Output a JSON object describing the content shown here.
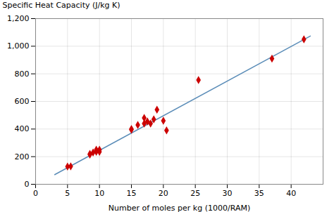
{
  "chart_data": {
    "type": "scatter",
    "xlabel": "Number of moles per kg (1000/RAM)",
    "ylabel": "Specific Heat Capacity (J/kg K)",
    "series": [
      {
        "type": "line",
        "x": [
          3,
          43
        ],
        "values": [
          69.8,
          1073.8
        ],
        "color": "#5b8db8"
      },
      {
        "type": "scatter",
        "x": [
          5,
          5.5,
          8.5,
          8.5,
          9,
          9.5,
          9.5,
          10,
          10,
          15,
          15,
          16,
          17,
          17,
          17.5,
          18,
          18.5,
          19,
          20,
          20.5,
          25.5,
          37,
          42
        ],
        "values": [
          128,
          130,
          215,
          220,
          230,
          235,
          250,
          235,
          250,
          395,
          400,
          430,
          440,
          480,
          455,
          440,
          470,
          540,
          460,
          390,
          755,
          910,
          1050
        ],
        "color": "#cc0000",
        "marker": "diamond"
      }
    ],
    "xlim": [
      0,
      45
    ],
    "xticks": [
      0,
      5,
      10,
      15,
      20,
      25,
      30,
      35,
      40
    ],
    "ylim": [
      0,
      1200
    ],
    "yticks": [
      0,
      200,
      400,
      600,
      800,
      1000,
      1200
    ],
    "grid": true
  }
}
